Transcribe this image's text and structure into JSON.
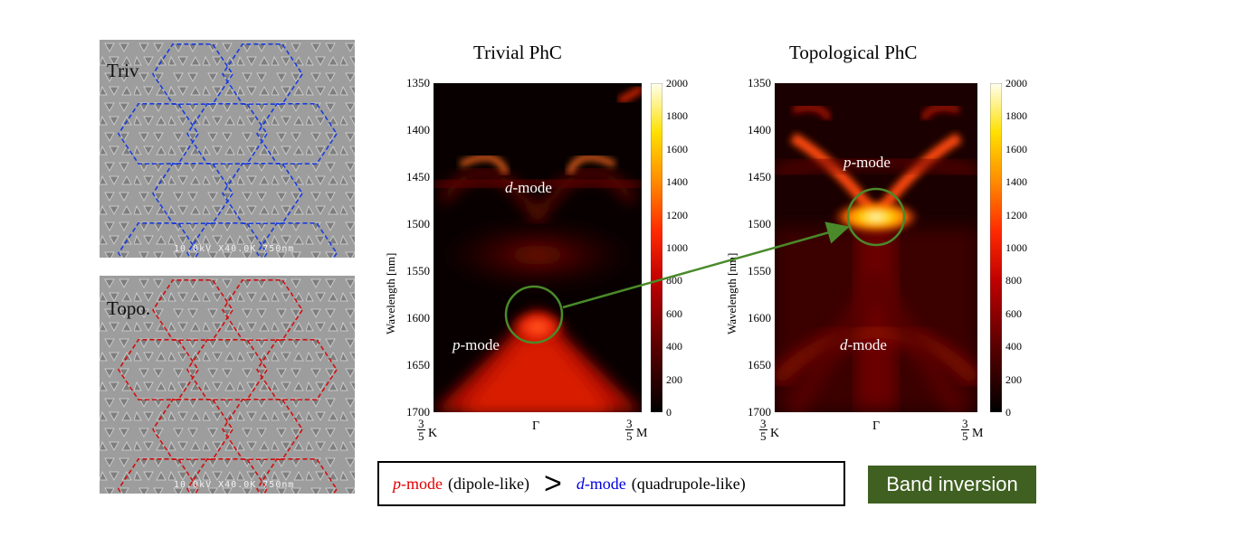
{
  "sem_panels": [
    {
      "label": "Triv",
      "caption": "10.0kV X40.0K 750nm",
      "lattice_color": "#1a3ddb"
    },
    {
      "label": "Topo.",
      "caption": "10.0kV X40.0K 750nm",
      "lattice_color": "#d01010"
    }
  ],
  "plots": [
    {
      "title": "Trivial PhC",
      "ylabel": "Wavelength [nm]",
      "yticks": [
        "1350",
        "1400",
        "1450",
        "1500",
        "1550",
        "1600",
        "1650",
        "1700"
      ],
      "xticks": {
        "left_num": "3",
        "left_den": "5",
        "left_point": "K",
        "mid": "Γ",
        "right_num": "3",
        "right_den": "5",
        "right_point": "M"
      },
      "colorbar_ticks": [
        "2000",
        "1800",
        "1600",
        "1400",
        "1200",
        "1000",
        "800",
        "600",
        "400",
        "200",
        "0"
      ],
      "upper_mode": {
        "letter": "d",
        "suffix": "-mode"
      },
      "lower_mode": {
        "letter": "p",
        "suffix": "-mode"
      }
    },
    {
      "title": "Topological PhC",
      "ylabel": "Wavelength [nm]",
      "yticks": [
        "1350",
        "1400",
        "1450",
        "1500",
        "1550",
        "1600",
        "1650",
        "1700"
      ],
      "xticks": {
        "left_num": "3",
        "left_den": "5",
        "left_point": "K",
        "mid": "Γ",
        "right_num": "3",
        "right_den": "5",
        "right_point": "M"
      },
      "colorbar_ticks": [
        "2000",
        "1800",
        "1600",
        "1400",
        "1200",
        "1000",
        "800",
        "600",
        "400",
        "200",
        "0"
      ],
      "upper_mode": {
        "letter": "p",
        "suffix": "-mode"
      },
      "lower_mode": {
        "letter": "d",
        "suffix": "-mode"
      }
    }
  ],
  "legend": {
    "p_letter": "p",
    "p_text": "-mode",
    "p_desc": "(dipole-like)",
    "symbol": ">",
    "d_letter": "d",
    "d_text": "-mode",
    "d_desc": "(quadrupole-like)",
    "p_color": "#e00000",
    "d_color": "#0000e0"
  },
  "badge": {
    "label": "Band inversion",
    "color": "#3f6020"
  },
  "annotation_color": "#4a8a2a"
}
